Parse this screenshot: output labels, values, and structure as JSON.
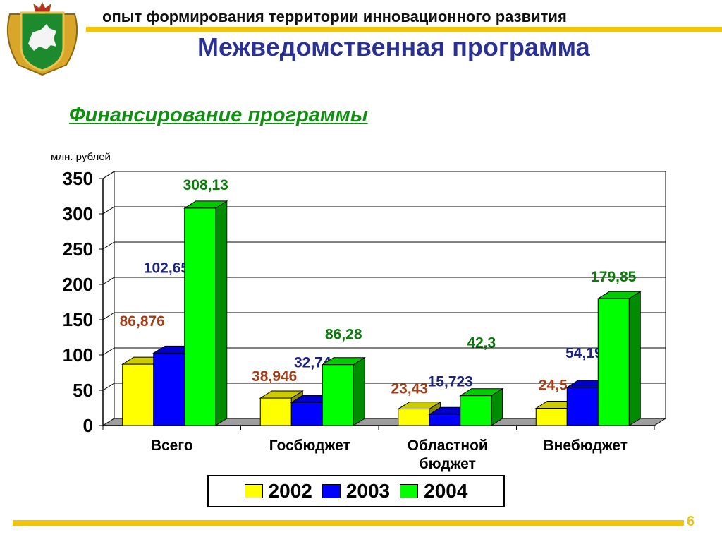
{
  "header": {
    "subtitle": "опыт формирования территории инновационного развития",
    "title": "Межведомственная программа"
  },
  "section_title": "Финансирование программы",
  "page_number": "6",
  "colors": {
    "accent_bar": "#F2C40C",
    "title": "#2A3192",
    "section_title": "#109010"
  },
  "chart_data": {
    "type": "bar",
    "ylabel": "млн. рублей",
    "ylim": [
      0,
      350
    ],
    "yticks": [
      "0",
      "50",
      "100",
      "150",
      "200",
      "250",
      "300",
      "350"
    ],
    "grid": true,
    "categories": [
      "Всего",
      "Госбюджет",
      "Областной бюджет",
      "Внебюджет"
    ],
    "category_lines": [
      [
        "Всего"
      ],
      [
        "Госбюджет"
      ],
      [
        "Областной",
        "бюджет"
      ],
      [
        "Внебюджет"
      ]
    ],
    "legend_position": "bottom",
    "series": [
      {
        "name": "2002",
        "color": "#FFFF00",
        "values": [
          86.876,
          38.946,
          23.43,
          24.5
        ],
        "labels": [
          "86,876",
          "38,946",
          "23,43",
          "24,5"
        ],
        "label_color": "#A0401A"
      },
      {
        "name": "2003",
        "color": "#0000FF",
        "values": [
          102.657,
          32.74,
          15.723,
          54.194
        ],
        "labels": [
          "102,657",
          "32,74",
          "15,723",
          "54,194"
        ],
        "label_color": "#1A237E"
      },
      {
        "name": "2004",
        "color": "#00FF00",
        "values": [
          308.13,
          86.28,
          42.3,
          179.85
        ],
        "labels": [
          "308,13",
          "86,28",
          "42,3",
          "179,85"
        ],
        "label_color": "#0A7A0A"
      }
    ]
  }
}
